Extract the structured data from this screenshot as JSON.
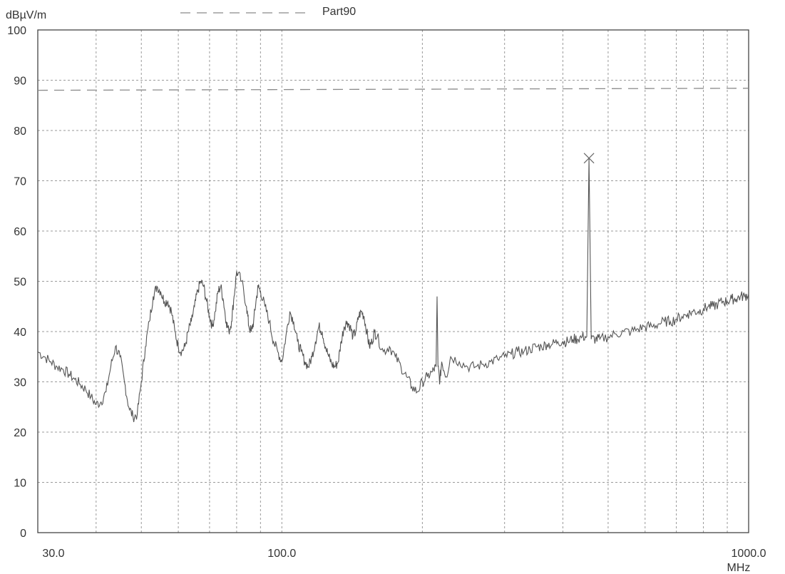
{
  "chart_data": {
    "type": "line",
    "title": "",
    "ylabel": "dBµV/m",
    "xlabel": "MHz",
    "x_scale": "log",
    "xlim": [
      30,
      1000
    ],
    "ylim": [
      0,
      100
    ],
    "grid": true,
    "legend": {
      "position": "top-center",
      "entries": [
        "Part90"
      ]
    },
    "y_ticks": [
      0,
      10,
      20,
      30,
      40,
      50,
      60,
      70,
      80,
      90,
      100
    ],
    "y_tick_labels": [
      "0",
      "10",
      "20",
      "30",
      "40",
      "50",
      "60",
      "70",
      "80",
      "90",
      "100"
    ],
    "x_tick_labels": [
      {
        "value": 30,
        "label": "30.0"
      },
      {
        "value": 100,
        "label": "100.0"
      },
      {
        "value": 1000,
        "label": "1000.0"
      }
    ],
    "limit_line": {
      "name": "Part90",
      "x": [
        30,
        1000
      ],
      "y": [
        88,
        88.4
      ]
    },
    "series": [
      {
        "x": [
          30,
          31,
          32,
          33,
          34,
          35,
          36,
          37,
          38,
          39,
          40,
          41,
          42,
          43,
          44,
          45,
          46,
          47,
          48,
          49,
          50,
          51,
          52,
          53,
          54,
          55,
          56,
          57,
          58,
          59,
          60,
          61,
          62,
          63,
          64,
          65,
          66,
          67,
          68,
          69,
          70,
          71,
          72,
          73,
          74,
          75,
          76,
          77,
          78,
          79,
          80,
          82,
          84,
          85,
          86,
          87,
          88,
          89,
          90,
          92,
          94,
          96,
          98,
          100,
          102,
          104,
          106,
          108,
          110,
          112,
          114,
          116,
          118,
          120,
          122,
          124,
          126,
          128,
          130,
          132,
          134,
          136,
          138,
          140,
          142,
          144,
          146,
          148,
          150,
          152,
          154,
          156,
          158,
          160,
          165,
          170,
          175,
          180,
          185,
          190,
          195,
          200,
          205,
          210,
          214,
          215,
          216,
          218,
          220,
          225,
          230,
          240,
          250,
          260,
          270,
          280,
          290,
          300,
          310,
          320,
          330,
          340,
          350,
          360,
          370,
          380,
          390,
          400,
          410,
          420,
          430,
          440,
          450,
          455,
          460,
          470,
          480,
          500,
          520,
          540,
          560,
          580,
          600,
          620,
          640,
          660,
          680,
          700,
          720,
          740,
          760,
          780,
          800,
          820,
          840,
          860,
          880,
          900,
          920,
          940,
          960,
          980,
          1000
        ],
        "y": [
          36,
          35,
          34,
          33,
          32.5,
          31.5,
          30.5,
          29.5,
          28.5,
          27,
          25.5,
          26,
          28,
          33,
          37,
          35,
          30,
          25,
          23,
          23.5,
          30,
          37,
          42,
          47,
          49,
          48,
          46,
          46,
          44,
          40,
          37,
          36,
          37,
          40,
          42,
          45,
          48,
          50,
          49,
          46,
          43,
          41,
          44,
          48,
          49,
          46,
          42,
          40,
          42,
          47,
          52,
          50,
          45,
          41,
          40,
          42,
          46,
          49,
          48,
          45,
          42,
          38,
          36,
          34,
          39,
          44,
          42,
          38,
          36,
          34,
          33,
          35,
          38,
          41,
          40,
          37,
          35,
          33.5,
          33,
          34,
          38,
          41,
          42,
          41,
          39,
          40,
          43,
          44,
          43,
          40,
          37,
          38,
          40,
          39,
          36,
          37,
          35,
          33,
          31,
          29,
          28,
          30,
          31,
          32,
          33,
          47,
          33,
          30,
          34,
          31,
          35,
          34,
          33,
          33,
          33.5,
          34,
          34.5,
          35,
          35.5,
          36,
          36,
          36.5,
          37,
          37,
          37.5,
          37.5,
          38,
          38,
          38,
          38.5,
          38.5,
          39,
          39,
          74.5,
          38.5,
          38.5,
          38.5,
          39,
          39.5,
          40,
          40,
          40.5,
          41,
          41,
          41.5,
          42,
          42,
          42.5,
          43,
          43.5,
          44,
          44,
          44.5,
          45,
          45,
          45.5,
          46,
          46,
          46.5,
          46.5,
          47,
          47,
          47.5
        ]
      }
    ],
    "markers": [
      {
        "x": 455,
        "y": 74.5,
        "shape": "x"
      }
    ]
  }
}
